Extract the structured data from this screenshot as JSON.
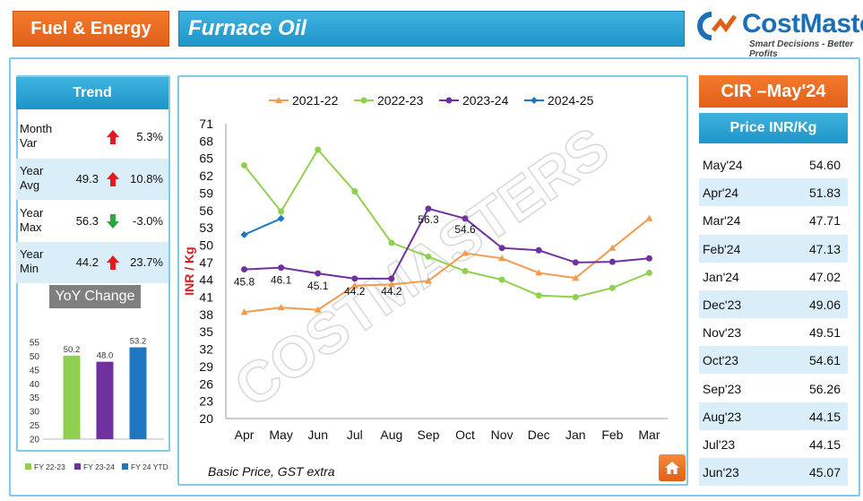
{
  "header": {
    "category": "Fuel & Energy",
    "title": "Furnace Oil",
    "logo_name": "CostMasters",
    "logo_tagline": "Smart Decisions - Better Profits"
  },
  "trend": {
    "title": "Trend",
    "rows": [
      {
        "label": "Month Var",
        "value": "",
        "direction": "up",
        "pct": "5.3%"
      },
      {
        "label": "Year Avg",
        "value": "49.3",
        "direction": "up",
        "pct": "10.8%"
      },
      {
        "label": "Year Max",
        "value": "56.3",
        "direction": "down",
        "pct": "-3.0%"
      },
      {
        "label": "Year Min",
        "value": "44.2",
        "direction": "up",
        "pct": "23.7%"
      }
    ],
    "colors": {
      "up": "#e41b1b",
      "down": "#2aa83a"
    }
  },
  "yoy": {
    "title": "YoY Change",
    "chart_data": {
      "type": "bar",
      "categories": [
        "FY 22-23",
        "FY 23-24",
        "FY 24 YTD"
      ],
      "values": [
        50.2,
        48.0,
        53.2
      ],
      "labels": [
        "50.2",
        "48.0",
        "53.2"
      ],
      "colors": [
        "#8fd14f",
        "#7030a0",
        "#1f77c4"
      ],
      "ylim": [
        20,
        55
      ],
      "yticks": [
        "20",
        "25",
        "30",
        "35",
        "40",
        "45",
        "50",
        "55"
      ],
      "legend": [
        "FY 22-23",
        "FY 23-24",
        "FY 24 YTD"
      ]
    }
  },
  "chart_data": {
    "type": "line",
    "ylabel": "INR / Kg",
    "categories": [
      "Apr",
      "May",
      "Jun",
      "Jul",
      "Aug",
      "Sep",
      "Oct",
      "Nov",
      "Dec",
      "Jan",
      "Feb",
      "Mar"
    ],
    "yticks": [
      "20",
      "23",
      "26",
      "29",
      "32",
      "35",
      "38",
      "41",
      "44",
      "47",
      "50",
      "53",
      "56",
      "59",
      "62",
      "65",
      "68",
      "71"
    ],
    "ylim": [
      20,
      71
    ],
    "legend_position": "top",
    "series": [
      {
        "name": "2021-22",
        "color": "#f39a4c",
        "values": [
          38.4,
          39.2,
          38.8,
          43.0,
          43.2,
          43.8,
          48.6,
          47.7,
          45.2,
          44.3,
          49.5,
          54.6
        ]
      },
      {
        "name": "2022-23",
        "color": "#8fd14f",
        "values": [
          63.8,
          55.8,
          66.5,
          59.3,
          50.4,
          48.0,
          45.5,
          44.0,
          41.3,
          41.0,
          42.6,
          45.2
        ]
      },
      {
        "name": "2023-24",
        "color": "#7030a0",
        "values": [
          45.8,
          46.1,
          45.1,
          44.2,
          44.2,
          56.3,
          54.6,
          49.5,
          49.1,
          47.0,
          47.1,
          47.7
        ]
      },
      {
        "name": "2024-25",
        "color": "#1f77c4",
        "values": [
          51.8,
          54.6,
          null,
          null,
          null,
          null,
          null,
          null,
          null,
          null,
          null,
          null
        ]
      }
    ],
    "data_labels": [
      {
        "series": 2,
        "index": 0,
        "text": "45.8"
      },
      {
        "series": 2,
        "index": 1,
        "text": "46.1"
      },
      {
        "series": 2,
        "index": 2,
        "text": "45.1"
      },
      {
        "series": 2,
        "index": 3,
        "text": "44.2"
      },
      {
        "series": 2,
        "index": 4,
        "text": "44.2"
      },
      {
        "series": 2,
        "index": 5,
        "text": "56.3"
      },
      {
        "series": 2,
        "index": 6,
        "text": "54.6"
      }
    ]
  },
  "footnote": "Basic Price, GST extra",
  "cir": {
    "title": "CIR –May'24",
    "price_header": "Price  INR/Kg",
    "rows": [
      {
        "month": "May'24",
        "price": "54.60"
      },
      {
        "month": "Apr'24",
        "price": "51.83"
      },
      {
        "month": "Mar'24",
        "price": "47.71"
      },
      {
        "month": "Feb'24",
        "price": "47.13"
      },
      {
        "month": "Jan'24",
        "price": "47.02"
      },
      {
        "month": "Dec'23",
        "price": "49.06"
      },
      {
        "month": "Nov'23",
        "price": "49.51"
      },
      {
        "month": "Oct'23",
        "price": "54.61"
      },
      {
        "month": "Sep'23",
        "price": "56.26"
      },
      {
        "month": "Aug'23",
        "price": "44.15"
      },
      {
        "month": "Jul'23",
        "price": "44.15"
      },
      {
        "month": "Jun'23",
        "price": "45.07"
      }
    ]
  },
  "watermark": "COSTMASTERS"
}
